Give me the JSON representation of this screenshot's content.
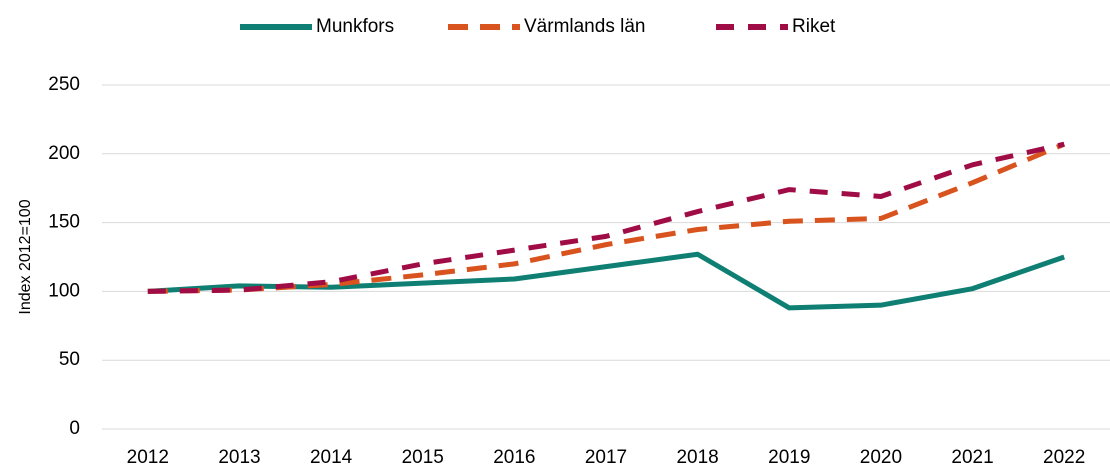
{
  "chart_data": {
    "type": "line",
    "y_label": "Index 2012=100",
    "categories": [
      "2012",
      "2013",
      "2014",
      "2015",
      "2016",
      "2017",
      "2018",
      "2019",
      "2020",
      "2021",
      "2022"
    ],
    "series": [
      {
        "name": "Munkfors",
        "color": "#0e7f72",
        "dash": "solid",
        "values": [
          100,
          104,
          103,
          106,
          109,
          118,
          127,
          88,
          90,
          102,
          125
        ]
      },
      {
        "name": "Värmlands län",
        "color": "#d9531e",
        "dash": "dashed",
        "values": [
          100,
          101,
          105,
          112,
          120,
          134,
          145,
          151,
          153,
          179,
          207
        ]
      },
      {
        "name": "Riket",
        "color": "#a00c45",
        "dash": "dashed",
        "values": [
          100,
          101,
          107,
          120,
          130,
          140,
          158,
          174,
          169,
          192,
          207
        ]
      }
    ],
    "ylim": [
      0,
      250
    ],
    "yticks": [
      0,
      50,
      100,
      150,
      200,
      250
    ],
    "grid": true,
    "legend": "top"
  }
}
